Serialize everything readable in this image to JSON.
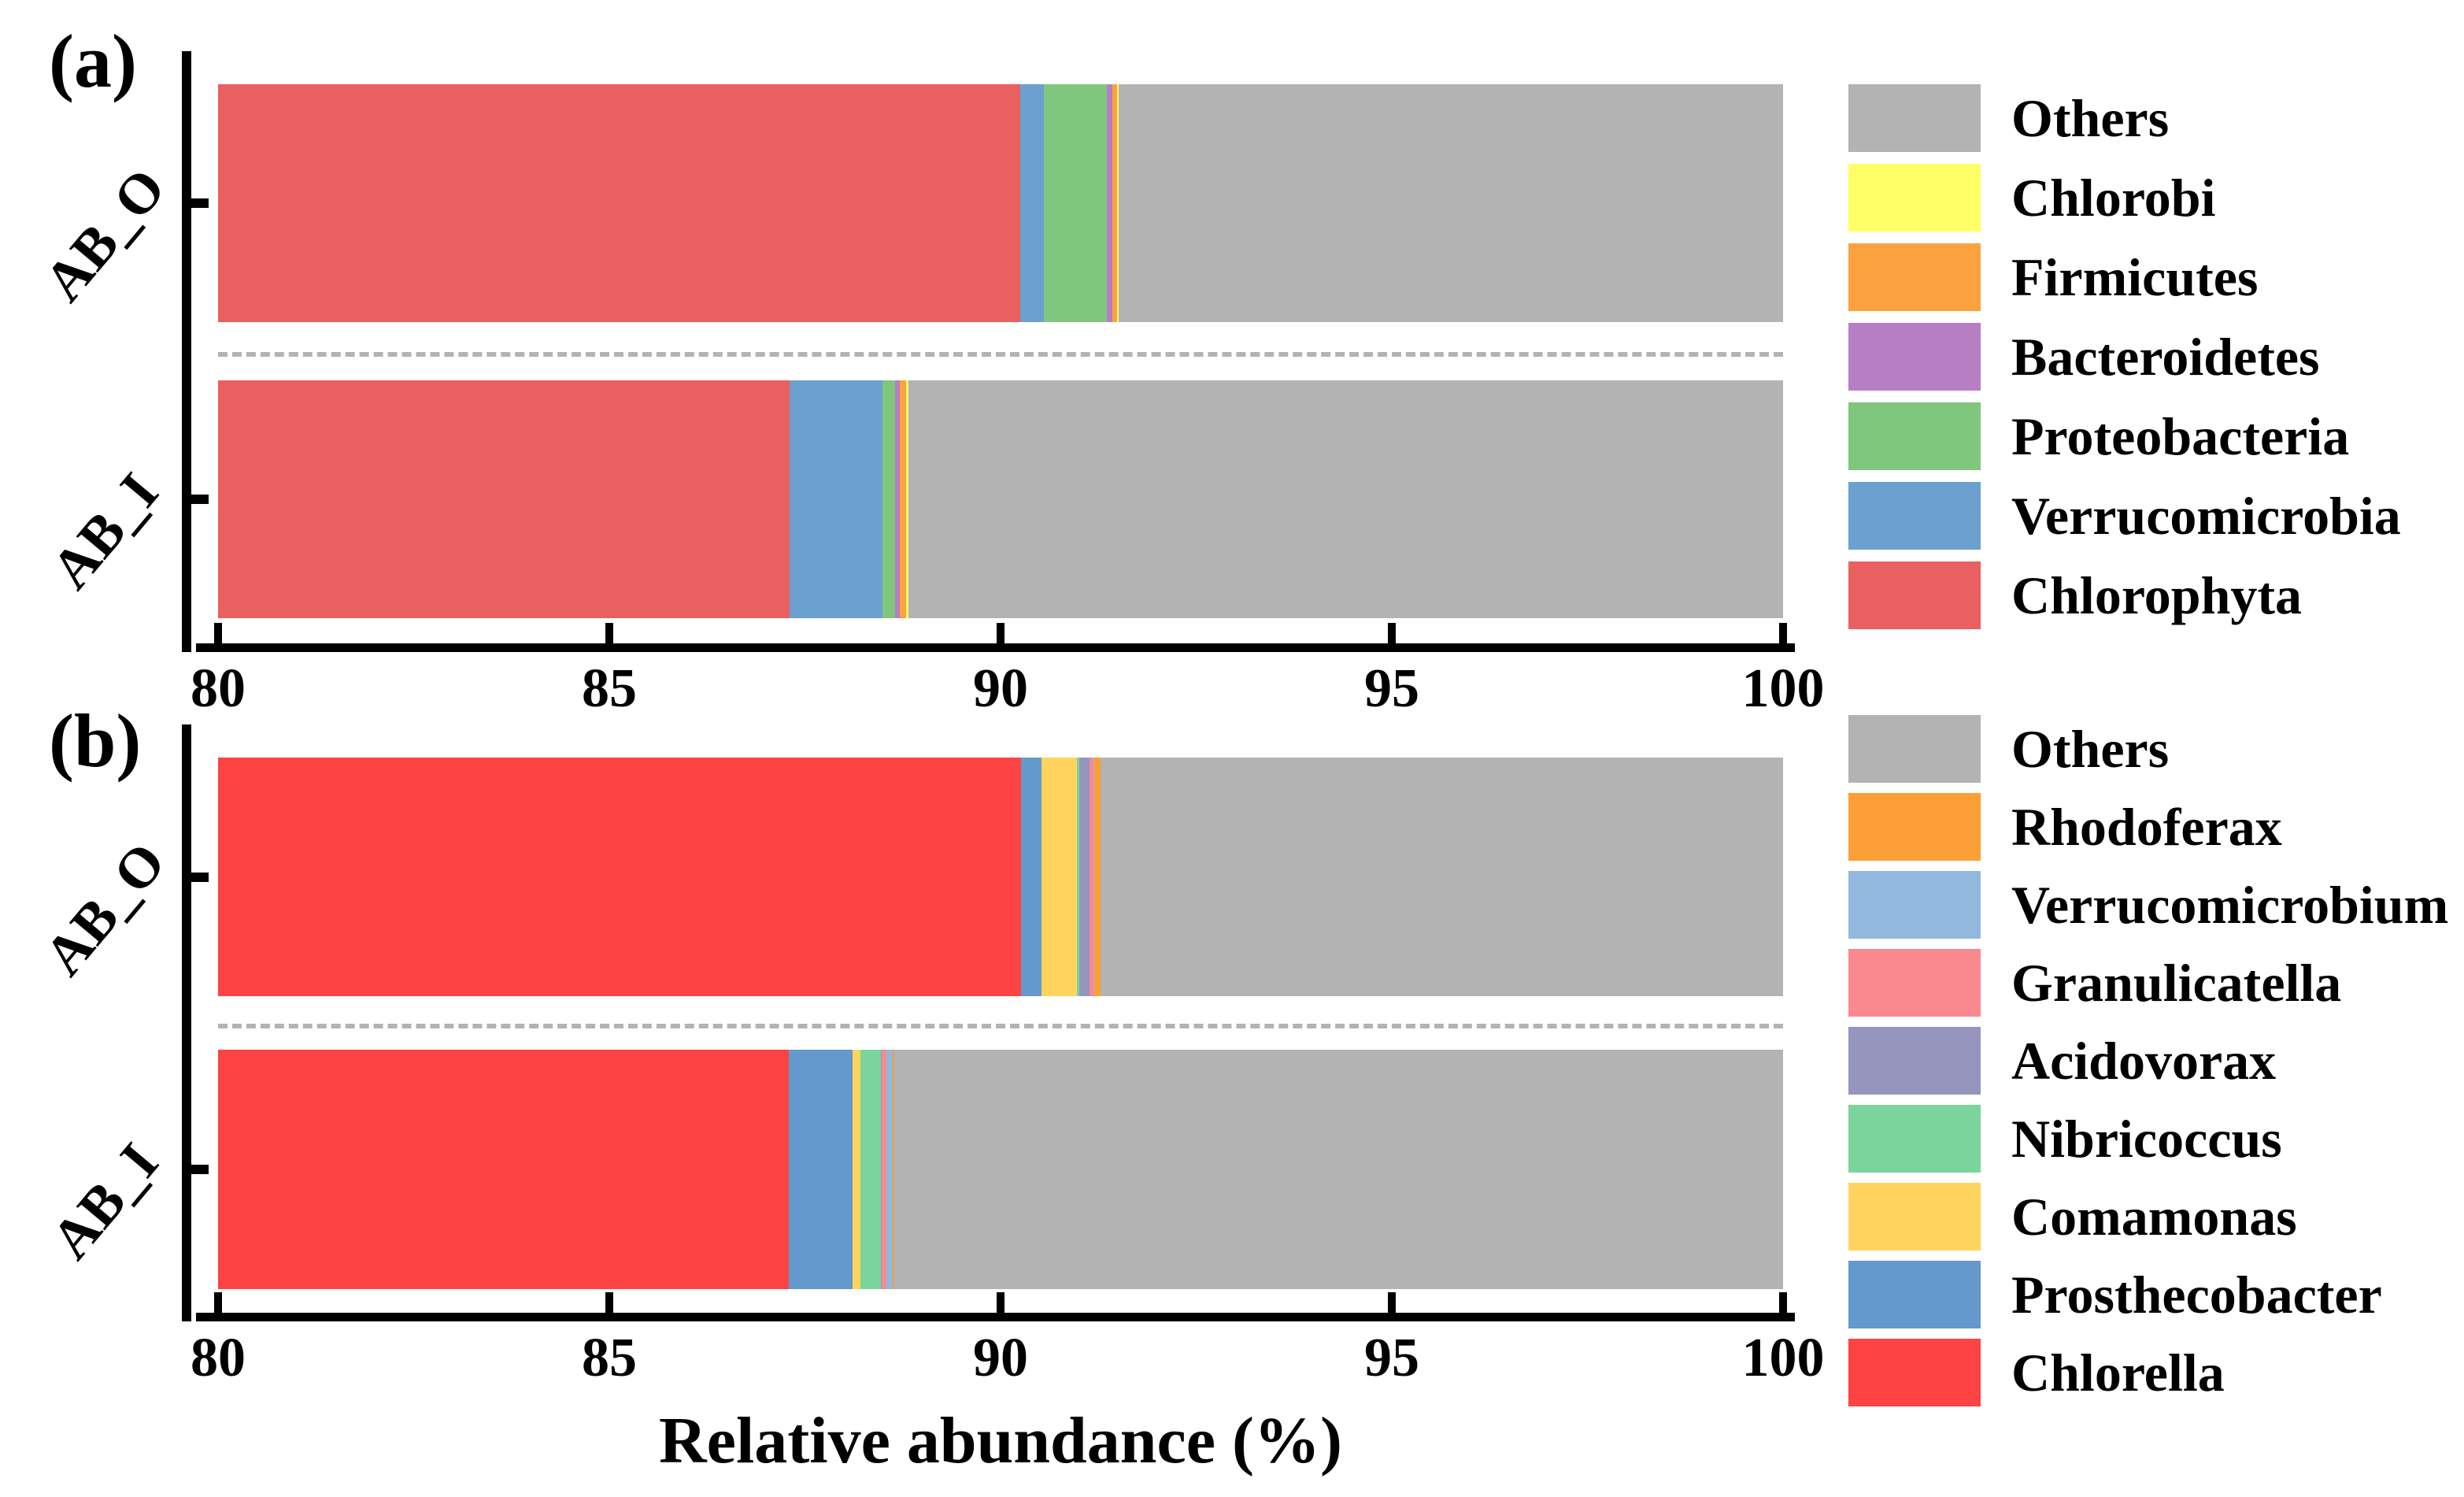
{
  "figure": {
    "xlabel": "Relative abundance (%)",
    "background": "#ffffff",
    "axis_color": "#000000",
    "separator_color": "#b3b3b3"
  },
  "chart_data": [
    {
      "type": "bar",
      "orientation": "horizontal-stacked",
      "panel_label": "(a)",
      "categories": [
        "AB_O",
        "AB_I"
      ],
      "xlim": [
        80,
        100
      ],
      "xticks": [
        "80",
        "85",
        "90",
        "95",
        "100"
      ],
      "xlabel": "",
      "grid": false,
      "legend_position": "right",
      "series": [
        {
          "name": "Chlorophyta",
          "color": "#ea5f5f",
          "values": [
            90.25,
            87.3
          ]
        },
        {
          "name": "Verrucomicrobia",
          "color": "#6ba0d1",
          "values": [
            0.3,
            1.19
          ]
        },
        {
          "name": "Proteobacteria",
          "color": "#80c77e",
          "values": [
            0.81,
            0.16
          ]
        },
        {
          "name": "Bacteroidetes",
          "color": "#b67fc4",
          "values": [
            0.07,
            0.06
          ]
        },
        {
          "name": "Firmicutes",
          "color": "#fba23e",
          "values": [
            0.06,
            0.08
          ]
        },
        {
          "name": "Chlorobi",
          "color": "#ffff66",
          "values": [
            0.02,
            0.03
          ]
        },
        {
          "name": "Others",
          "color": "#b3b3b3",
          "values": [
            8.49,
            11.18
          ]
        }
      ]
    },
    {
      "type": "bar",
      "orientation": "horizontal-stacked",
      "panel_label": "(b)",
      "categories": [
        "AB_O",
        "AB_I"
      ],
      "xlim": [
        80,
        100
      ],
      "xticks": [
        "80",
        "85",
        "90",
        "95",
        "100"
      ],
      "xlabel": "Relative abundance (%)",
      "grid": false,
      "legend_position": "right",
      "series": [
        {
          "name": "Chlorella",
          "color": "#fd4343",
          "values": [
            90.26,
            87.29
          ]
        },
        {
          "name": "Prosthecobacter",
          "color": "#6399cc",
          "values": [
            0.26,
            0.82
          ]
        },
        {
          "name": "Comamonas",
          "color": "#ffd45e",
          "values": [
            0.46,
            0.1
          ]
        },
        {
          "name": "Nibricoccus",
          "color": "#7bd49b",
          "values": [
            0.03,
            0.26
          ]
        },
        {
          "name": "Acidovorax",
          "color": "#9595be",
          "values": [
            0.13,
            0.01
          ]
        },
        {
          "name": "Granulicatella",
          "color": "#f9898f",
          "values": [
            0.05,
            0.06
          ]
        },
        {
          "name": "Verrucomicrobium",
          "color": "#93b8de",
          "values": [
            0.01,
            0.08
          ]
        },
        {
          "name": "Rhodoferax",
          "color": "#fb9f36",
          "values": [
            0.08,
            0.02
          ]
        },
        {
          "name": "Others",
          "color": "#b3b3b3",
          "values": [
            8.72,
            11.36
          ]
        }
      ]
    }
  ]
}
